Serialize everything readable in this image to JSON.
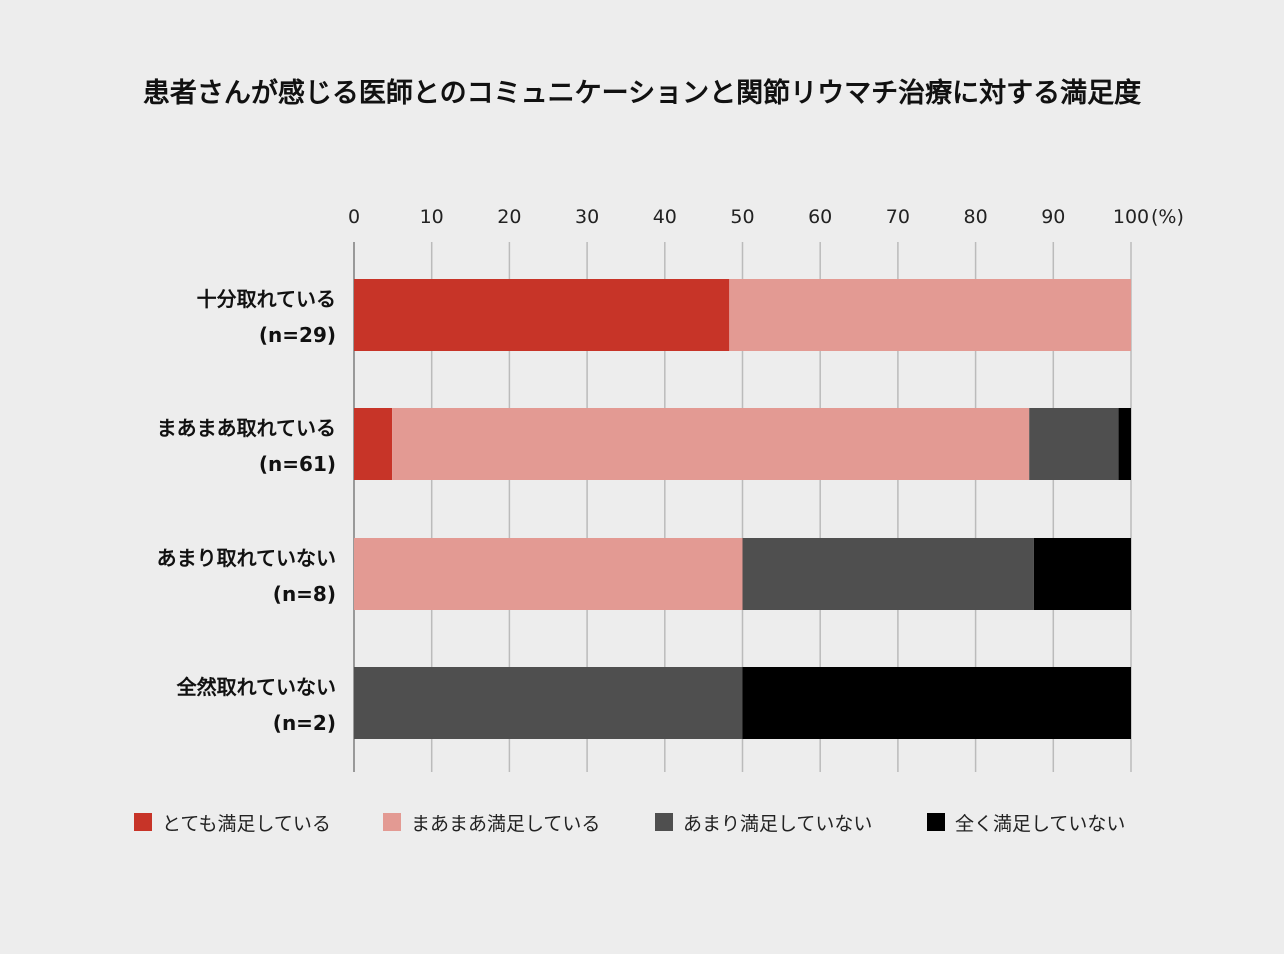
{
  "chart_data": {
    "type": "bar",
    "orientation": "horizontal",
    "stacked": true,
    "title": "患者さんが感じる医師とのコミュニケーションと関節リウマチ治療に対する満足度",
    "xlim": [
      0,
      100
    ],
    "x_ticks": [
      "0",
      "10",
      "20",
      "30",
      "40",
      "50",
      "60",
      "70",
      "80",
      "90",
      "100"
    ],
    "x_unit": "(%)",
    "grid": true,
    "legend_position": "bottom",
    "categories": [
      {
        "label": "十分取れている",
        "n": "(n=29)"
      },
      {
        "label": "まあまあ取れている",
        "n": "(n=61)"
      },
      {
        "label": "あまり取れていない",
        "n": "(n=8)"
      },
      {
        "label": "全然取れていない",
        "n": "(n=2)"
      }
    ],
    "series": [
      {
        "name": "とても満足している",
        "color": "#c73428",
        "values": [
          48.3,
          4.9,
          0,
          0
        ]
      },
      {
        "name": "まあまあ満足している",
        "color": "#e39a93",
        "values": [
          51.7,
          82.0,
          50,
          0
        ]
      },
      {
        "name": "あまり満足していない",
        "color": "#4f4f4f",
        "values": [
          0,
          11.5,
          37.5,
          50
        ]
      },
      {
        "name": "全く満足していない",
        "color": "#000000",
        "values": [
          0,
          1.6,
          12.5,
          50
        ]
      }
    ]
  }
}
